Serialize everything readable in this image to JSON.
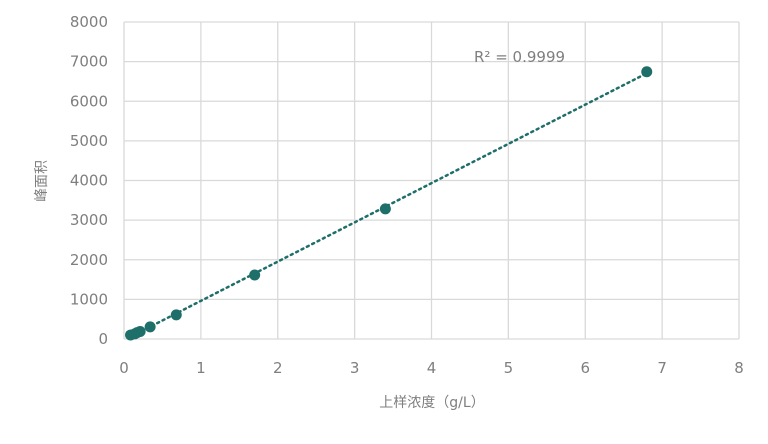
{
  "chart_data": {
    "type": "scatter",
    "title": "",
    "xlabel": "上样浓度（g/L）",
    "ylabel": "峰面积",
    "xlim": [
      0,
      8
    ],
    "ylim": [
      0,
      8000
    ],
    "x_ticks": [
      "0",
      "1",
      "2",
      "3",
      "4",
      "5",
      "6",
      "7",
      "8"
    ],
    "y_ticks": [
      "0",
      "1000",
      "2000",
      "3000",
      "4000",
      "5000",
      "6000",
      "7000",
      "8000"
    ],
    "grid": true,
    "legend": "none",
    "x": [
      0.085,
      0.14,
      0.17,
      0.21,
      0.34,
      0.68,
      1.7,
      3.4,
      6.8
    ],
    "y": [
      100,
      130,
      160,
      190,
      305,
      610,
      1615,
      3285,
      6745
    ],
    "trendline": {
      "type": "linear",
      "style": "dotted",
      "r2_label": "R² = 0.9999"
    },
    "colors": {
      "marker": "#1e6e6a",
      "grid": "#d9d9d9",
      "text": "#7f7f7f"
    }
  }
}
